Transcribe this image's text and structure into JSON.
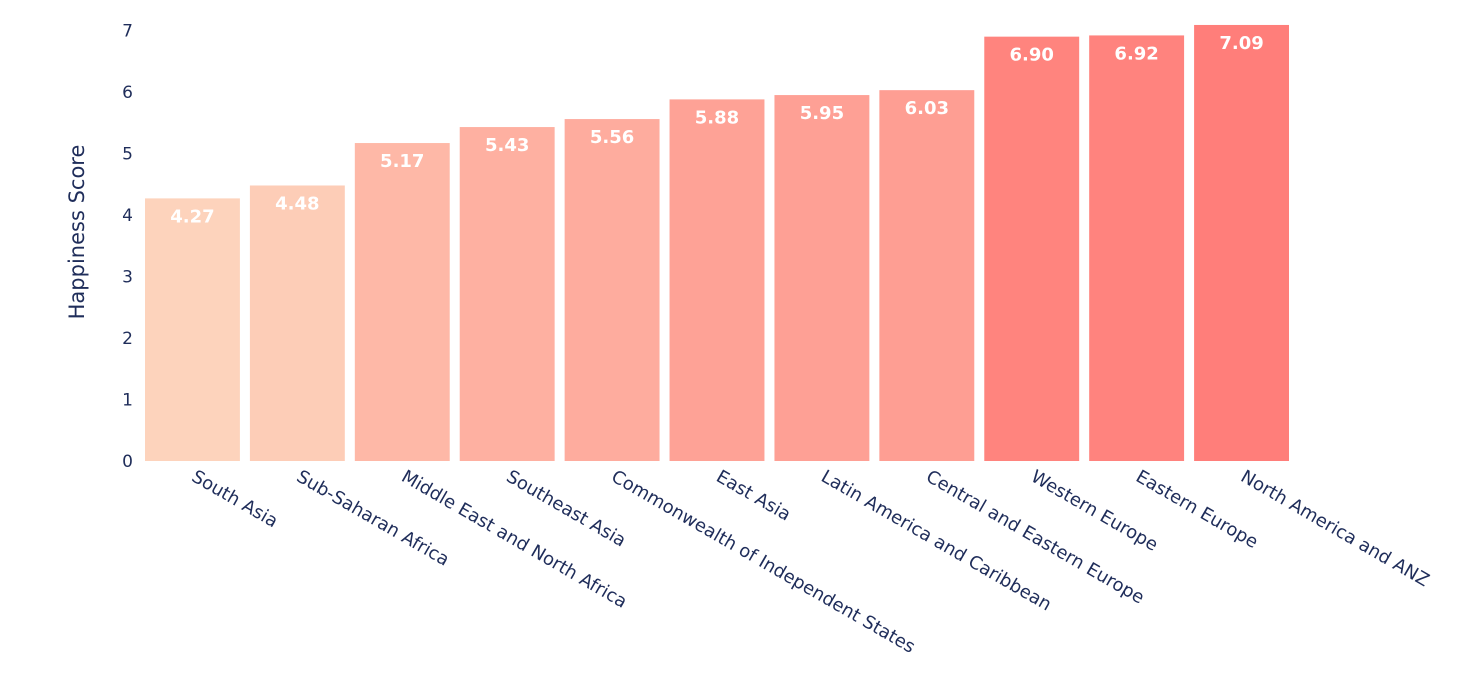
{
  "chart_data": {
    "type": "bar",
    "title": "",
    "xlabel": "",
    "ylabel": "Happiness Score",
    "categories": [
      "South Asia",
      "Sub-Saharan Africa",
      "Middle East and North Africa",
      "Southeast Asia",
      "Commonwealth of Independent States",
      "East Asia",
      "Latin America and Caribbean",
      "Central and Eastern Europe",
      "Western Europe",
      "Eastern Europe",
      "North America and ANZ"
    ],
    "values": [
      4.27,
      4.48,
      5.17,
      5.43,
      5.56,
      5.88,
      5.95,
      6.03,
      6.9,
      6.92,
      7.09
    ],
    "value_labels": [
      "4.27",
      "4.48",
      "5.17",
      "5.43",
      "5.56",
      "5.88",
      "5.95",
      "6.03",
      "6.90",
      "6.92",
      "7.09"
    ],
    "yticks": [
      0,
      1,
      2,
      3,
      4,
      5,
      6,
      7
    ],
    "ylim": [
      0,
      7.3
    ],
    "grid": false,
    "legend": "none",
    "colors": {
      "bar_low": "#fdd3bc",
      "bar_high": "#ff7e7a",
      "axis_text": "#1f2d5a",
      "value_label": "#ffffff"
    }
  }
}
